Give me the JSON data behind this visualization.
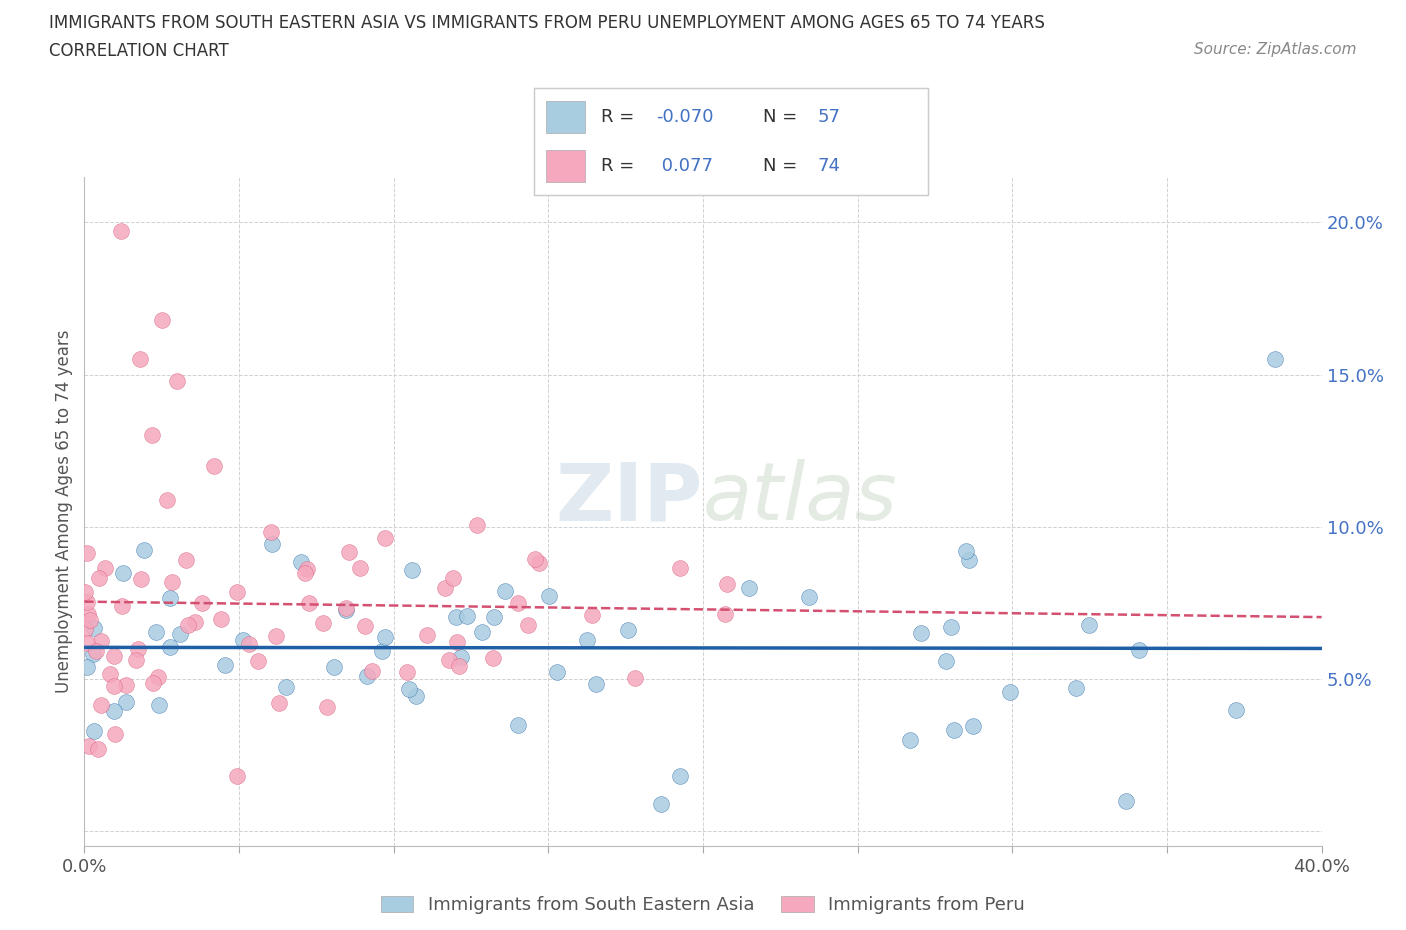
{
  "title_line1": "IMMIGRANTS FROM SOUTH EASTERN ASIA VS IMMIGRANTS FROM PERU UNEMPLOYMENT AMONG AGES 65 TO 74 YEARS",
  "title_line2": "CORRELATION CHART",
  "source_text": "Source: ZipAtlas.com",
  "ylabel": "Unemployment Among Ages 65 to 74 years",
  "xlim": [
    0.0,
    0.4
  ],
  "ylim": [
    -0.005,
    0.215
  ],
  "blue_color": "#a8cce0",
  "blue_line_color": "#1f5fa6",
  "pink_color": "#f5a8be",
  "pink_line_color": "#d45070",
  "watermark_zip": "ZIP",
  "watermark_atlas": "atlas",
  "r_blue_str": "-0.070",
  "n_blue_str": "57",
  "r_pink_str": "0.077",
  "n_pink_str": "74",
  "legend_label_blue": "Immigrants from South Eastern Asia",
  "legend_label_pink": "Immigrants from Peru"
}
